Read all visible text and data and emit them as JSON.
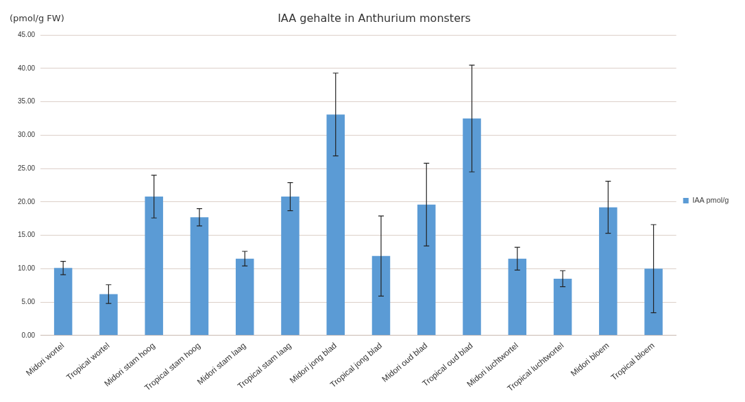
{
  "chart_data": {
    "type": "bar",
    "title": "IAA gehalte in Anthurium monsters",
    "ylabel": "(pmol/g FW)",
    "categories": [
      "Midori wortel",
      "Tropical wortel",
      "Midori stam hoog",
      "Tropical stam hoog",
      "Midori stam laag",
      "Tropical stam laag",
      "Midori jong blad",
      "Tropical jong blad",
      "Midori oud blad",
      "Tropical oud blad",
      "Midori luchtwortel",
      "Tropical luchtwortel",
      "Midori bloem",
      "Tropical bloem"
    ],
    "series": [
      {
        "name": "IAA pmol/g",
        "color": "#5b9bd5",
        "values": [
          10.1,
          6.2,
          20.8,
          17.7,
          11.5,
          20.8,
          33.1,
          11.9,
          19.6,
          32.5,
          11.5,
          8.5,
          19.2,
          10.0
        ],
        "errors": [
          1.0,
          1.4,
          3.2,
          1.3,
          1.1,
          2.1,
          6.2,
          6.0,
          6.2,
          8.0,
          1.7,
          1.2,
          3.9,
          6.6
        ]
      }
    ],
    "ylim": [
      0,
      45
    ],
    "yticks": [
      {
        "value": 0,
        "label": "0.00"
      },
      {
        "value": 5,
        "label": "5.00"
      },
      {
        "value": 10,
        "label": "10.00"
      },
      {
        "value": 15,
        "label": "15.00"
      },
      {
        "value": 20,
        "label": "20.00"
      },
      {
        "value": 25,
        "label": "25.00"
      },
      {
        "value": 30,
        "label": "30.00"
      },
      {
        "value": 35,
        "label": "35.00"
      },
      {
        "value": 40,
        "label": "40.00"
      },
      {
        "value": 45,
        "label": "45.00"
      }
    ],
    "grid": "y",
    "legend": "right"
  }
}
